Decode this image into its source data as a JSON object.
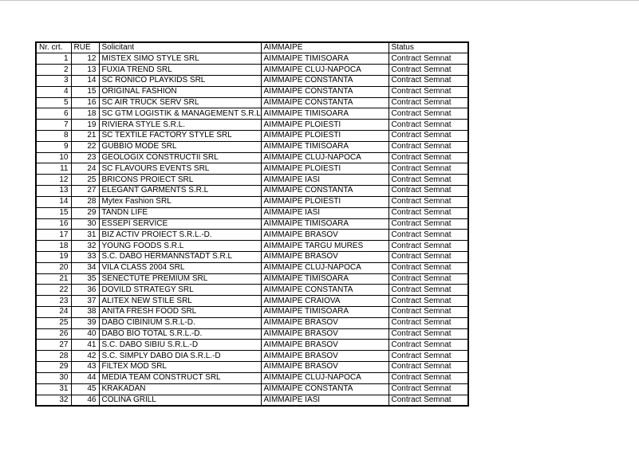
{
  "page": {
    "background": "#ffffff",
    "top_border_color": "#c6c6c6",
    "text_color": "#000000",
    "grid_color": "#000000"
  },
  "table": {
    "headers": {
      "nr": "Nr. crt.",
      "rue": "RUE",
      "solicitant": "Solicitant",
      "aimmaipe": "AIMMAIPE",
      "status": "Status"
    },
    "rows": [
      {
        "nr": "1",
        "rue": "12",
        "solicitant": "MISTEX SIMO STYLE SRL",
        "aimmaipe": "AIMMAIPE TIMISOARA",
        "status": "Contract Semnat"
      },
      {
        "nr": "2",
        "rue": "13",
        "solicitant": "FUXIA TREND SRL",
        "aimmaipe": "AIMMAIPE CLUJ-NAPOCA",
        "status": "Contract Semnat"
      },
      {
        "nr": "3",
        "rue": "14",
        "solicitant": "SC RONICO PLAYKIDS SRL",
        "aimmaipe": "AIMMAIPE CONSTANTA",
        "status": "Contract Semnat"
      },
      {
        "nr": "4",
        "rue": "15",
        "solicitant": "ORIGINAL FASHION",
        "aimmaipe": "AIMMAIPE CONSTANTA",
        "status": "Contract Semnat"
      },
      {
        "nr": "5",
        "rue": "16",
        "solicitant": "SC AIR TRUCK SERV SRL",
        "aimmaipe": "AIMMAIPE CONSTANTA",
        "status": "Contract Semnat"
      },
      {
        "nr": "6",
        "rue": "18",
        "solicitant": "SC GTM LOGISTIK & MANAGEMENT S.R.L",
        "aimmaipe": "AIMMAIPE TIMISOARA",
        "status": "Contract Semnat"
      },
      {
        "nr": "7",
        "rue": "19",
        "solicitant": "RIVIERA STYLE S.R.L.",
        "aimmaipe": "AIMMAIPE PLOIESTI",
        "status": "Contract Semnat"
      },
      {
        "nr": "8",
        "rue": "21",
        "solicitant": "SC TEXTILE FACTORY STYLE SRL",
        "aimmaipe": "AIMMAIPE PLOIESTI",
        "status": "Contract Semnat"
      },
      {
        "nr": "9",
        "rue": "22",
        "solicitant": "GUBBIO MODE SRL",
        "aimmaipe": "AIMMAIPE TIMISOARA",
        "status": "Contract Semnat"
      },
      {
        "nr": "10",
        "rue": "23",
        "solicitant": "GEOLOGIX CONSTRUCTII SRL",
        "aimmaipe": "AIMMAIPE CLUJ-NAPOCA",
        "status": "Contract Semnat"
      },
      {
        "nr": "11",
        "rue": "24",
        "solicitant": "SC FLAVOURS EVENTS SRL",
        "aimmaipe": "AIMMAIPE PLOIESTI",
        "status": "Contract Semnat"
      },
      {
        "nr": "12",
        "rue": "25",
        "solicitant": "BRICONS PROIECT SRL",
        "aimmaipe": "AIMMAIPE IASI",
        "status": "Contract Semnat"
      },
      {
        "nr": "13",
        "rue": "27",
        "solicitant": "ELEGANT GARMENTS S.R.L",
        "aimmaipe": "AIMMAIPE CONSTANTA",
        "status": "Contract Semnat"
      },
      {
        "nr": "14",
        "rue": "28",
        "solicitant": "Mytex Fashion SRL",
        "aimmaipe": "AIMMAIPE PLOIESTI",
        "status": "Contract Semnat"
      },
      {
        "nr": "15",
        "rue": "29",
        "solicitant": "TANDN LIFE",
        "aimmaipe": "AIMMAIPE IASI",
        "status": "Contract Semnat"
      },
      {
        "nr": "16",
        "rue": "30",
        "solicitant": "ESSEPI SERVICE",
        "aimmaipe": "AIMMAIPE TIMISOARA",
        "status": "Contract Semnat"
      },
      {
        "nr": "17",
        "rue": "31",
        "solicitant": "BIZ ACTIV PROIECT S.R.L.-D.",
        "aimmaipe": "AIMMAIPE BRASOV",
        "status": "Contract Semnat"
      },
      {
        "nr": "18",
        "rue": "32",
        "solicitant": "YOUNG FOODS S.R.L",
        "aimmaipe": "AIMMAIPE TARGU MURES",
        "status": "Contract Semnat"
      },
      {
        "nr": "19",
        "rue": "33",
        "solicitant": "S.C. DABO HERMANNSTADT S.R.L",
        "aimmaipe": "AIMMAIPE BRASOV",
        "status": "Contract Semnat"
      },
      {
        "nr": "20",
        "rue": "34",
        "solicitant": "VILA CLASS 2004 SRL",
        "aimmaipe": "AIMMAIPE CLUJ-NAPOCA",
        "status": "Contract Semnat"
      },
      {
        "nr": "21",
        "rue": "35",
        "solicitant": "SENECTUTE PREMIUM SRL",
        "aimmaipe": "AIMMAIPE TIMISOARA",
        "status": "Contract Semnat"
      },
      {
        "nr": "22",
        "rue": "36",
        "solicitant": "DOVILD STRATEGY SRL",
        "aimmaipe": "AIMMAIPE CONSTANTA",
        "status": "Contract Semnat"
      },
      {
        "nr": "23",
        "rue": "37",
        "solicitant": "ALITEX NEW STILE SRL",
        "aimmaipe": "AIMMAIPE CRAIOVA",
        "status": "Contract Semnat"
      },
      {
        "nr": "24",
        "rue": "38",
        "solicitant": "ANITA FRESH FOOD SRL",
        "aimmaipe": "AIMMAIPE TIMISOARA",
        "status": "Contract Semnat"
      },
      {
        "nr": "25",
        "rue": "39",
        "solicitant": "DABO CIBINIUM S.R.L-D.",
        "aimmaipe": "AIMMAIPE BRASOV",
        "status": "Contract Semnat"
      },
      {
        "nr": "26",
        "rue": "40",
        "solicitant": "DABO BIO TOTAL S.R.L.-D.",
        "aimmaipe": "AIMMAIPE BRASOV",
        "status": "Contract Semnat"
      },
      {
        "nr": "27",
        "rue": "41",
        "solicitant": "S.C. DABO SIBIU S.R.L.-D",
        "aimmaipe": "AIMMAIPE BRASOV",
        "status": "Contract Semnat"
      },
      {
        "nr": "28",
        "rue": "42",
        "solicitant": "S.C. SIMPLY DABO DIA S.R.L.-D",
        "aimmaipe": "AIMMAIPE BRASOV",
        "status": "Contract Semnat"
      },
      {
        "nr": "29",
        "rue": "43",
        "solicitant": "FILTEX MOD SRL",
        "aimmaipe": "AIMMAIPE BRASOV",
        "status": "Contract Semnat"
      },
      {
        "nr": "30",
        "rue": "44",
        "solicitant": "MEDIA TEAM CONSTRUCT SRL",
        "aimmaipe": "AIMMAIPE CLUJ-NAPOCA",
        "status": "Contract Semnat"
      },
      {
        "nr": "31",
        "rue": "45",
        "solicitant": "KRAKADAN",
        "aimmaipe": "AIMMAIPE CONSTANTA",
        "status": "Contract Semnat"
      },
      {
        "nr": "32",
        "rue": "46",
        "solicitant": "COLINA GRILL",
        "aimmaipe": "AIMMAIPE IASI",
        "status": "Contract Semnat"
      }
    ]
  }
}
